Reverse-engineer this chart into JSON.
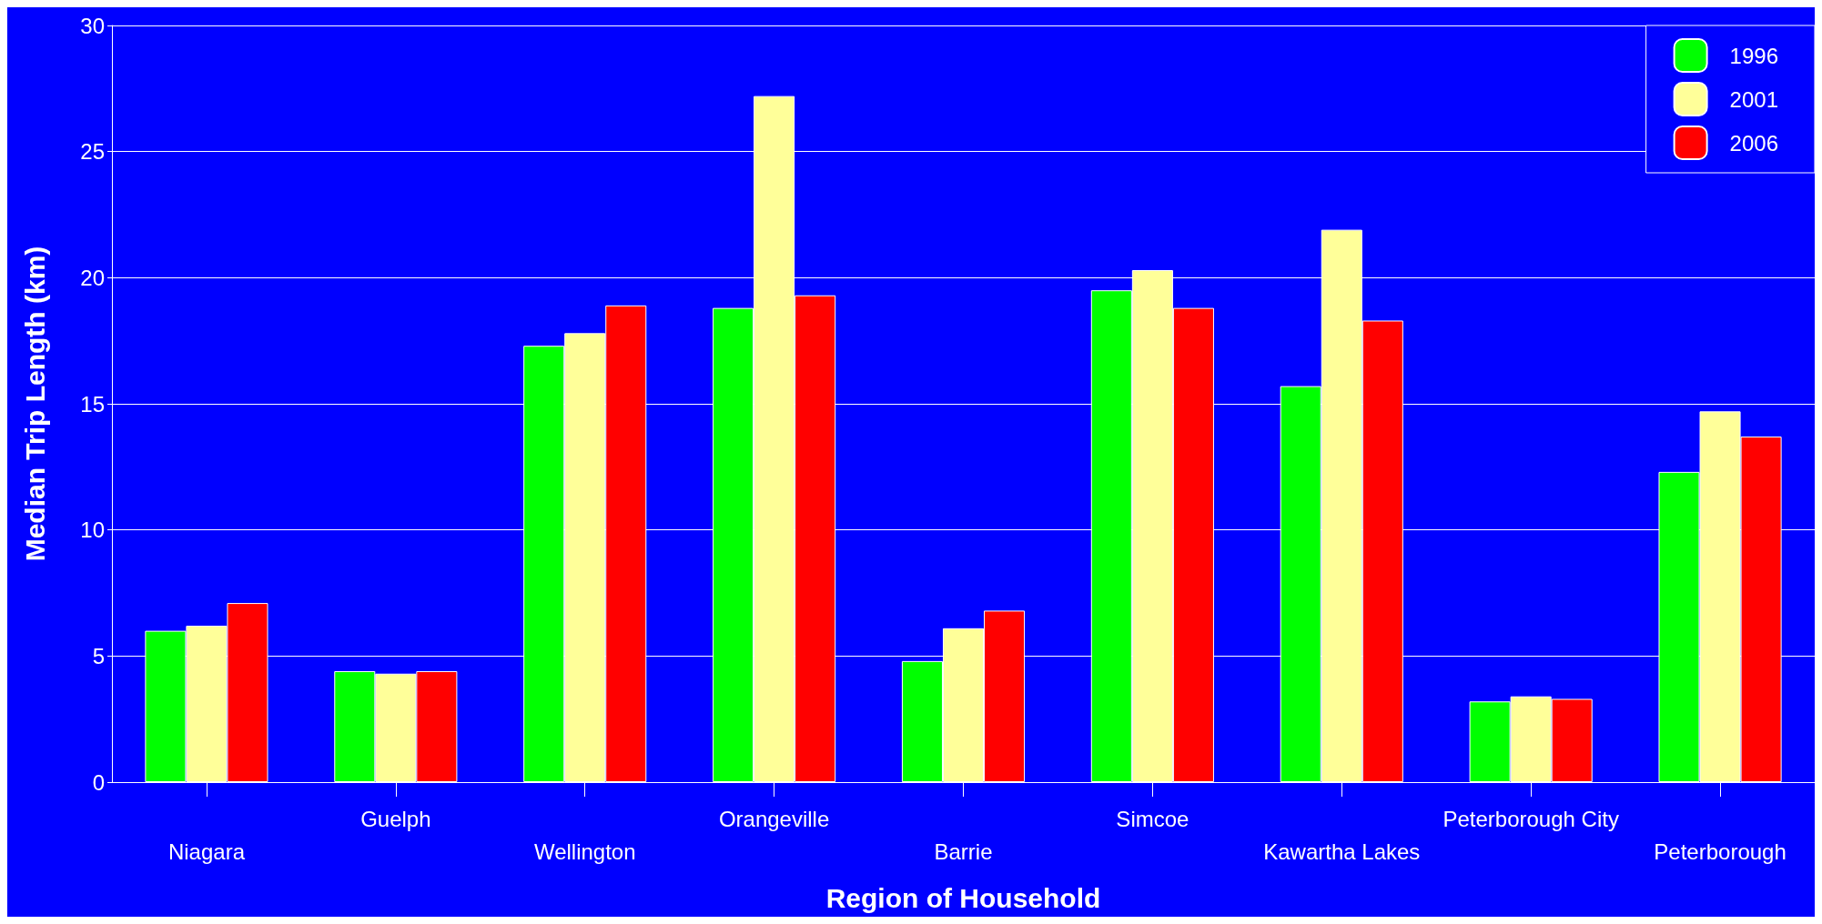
{
  "chart_data": {
    "type": "bar",
    "xlabel": "Region of Household",
    "ylabel": "Median Trip Length (km)",
    "categories": [
      "Niagara",
      "Guelph",
      "Wellington",
      "Orangeville",
      "Barrie",
      "Simcoe",
      "Kawartha Lakes",
      "Peterborough City",
      "Peterborough"
    ],
    "series": [
      {
        "name": "1996",
        "color": "#00ff00",
        "values": [
          6.0,
          4.4,
          17.3,
          18.8,
          4.8,
          19.5,
          15.7,
          3.2,
          12.3
        ]
      },
      {
        "name": "2001",
        "color": "#ffff99",
        "values": [
          6.2,
          4.3,
          17.8,
          27.2,
          6.1,
          20.3,
          21.9,
          3.4,
          14.7
        ]
      },
      {
        "name": "2006",
        "color": "#ff0000",
        "values": [
          7.1,
          4.4,
          18.9,
          19.3,
          6.8,
          18.8,
          18.3,
          3.3,
          13.7
        ]
      }
    ],
    "ylim": [
      0,
      30
    ],
    "yticks": [
      0,
      5,
      10,
      15,
      20,
      25,
      30
    ],
    "grid": "y",
    "legend": "top right"
  }
}
